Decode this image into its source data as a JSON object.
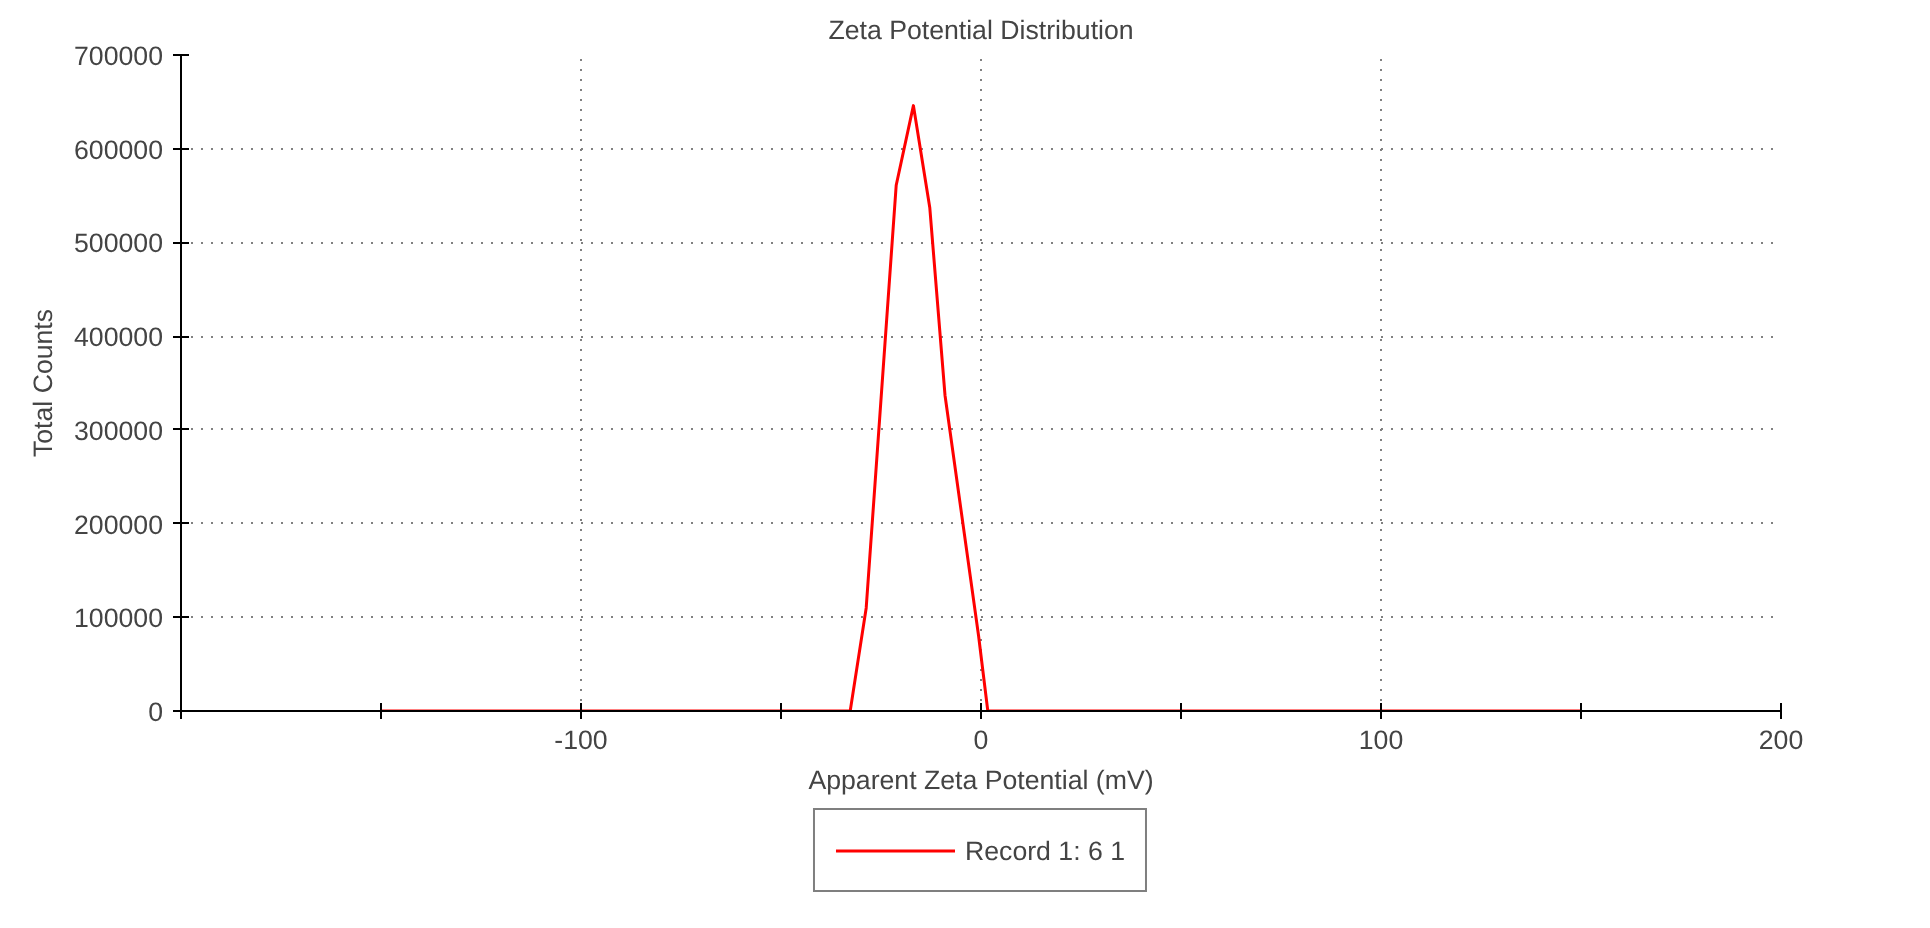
{
  "chart_data": {
    "type": "line",
    "title": "Zeta Potential Distribution",
    "xlabel": "Apparent Zeta Potential (mV)",
    "ylabel": "Total Counts",
    "series": [
      {
        "name": "Record 1: 6 1",
        "color": "#ff0000",
        "x": [
          -150,
          -32.7,
          -28.7,
          -21.2,
          -16.9,
          -12.8,
          -9,
          -0.6,
          1.7,
          150
        ],
        "values": [
          0,
          0,
          110000,
          561000,
          646000,
          537000,
          337000,
          80000,
          0,
          0
        ]
      }
    ],
    "xlim": [
      -200,
      200
    ],
    "xticks": [
      {
        "value": -200,
        "label": null
      },
      {
        "value": -150,
        "label": null
      },
      -100,
      {
        "value": -50,
        "label": null
      },
      0,
      {
        "value": 50,
        "label": null
      },
      100,
      {
        "value": 150,
        "label": null
      },
      200
    ],
    "ylim": [
      0,
      700000
    ],
    "yticks": [
      0,
      100000,
      200000,
      300000,
      400000,
      500000,
      600000,
      700000
    ],
    "grid": true,
    "legend": "bottom",
    "marker": "none",
    "line_style": "solid"
  }
}
